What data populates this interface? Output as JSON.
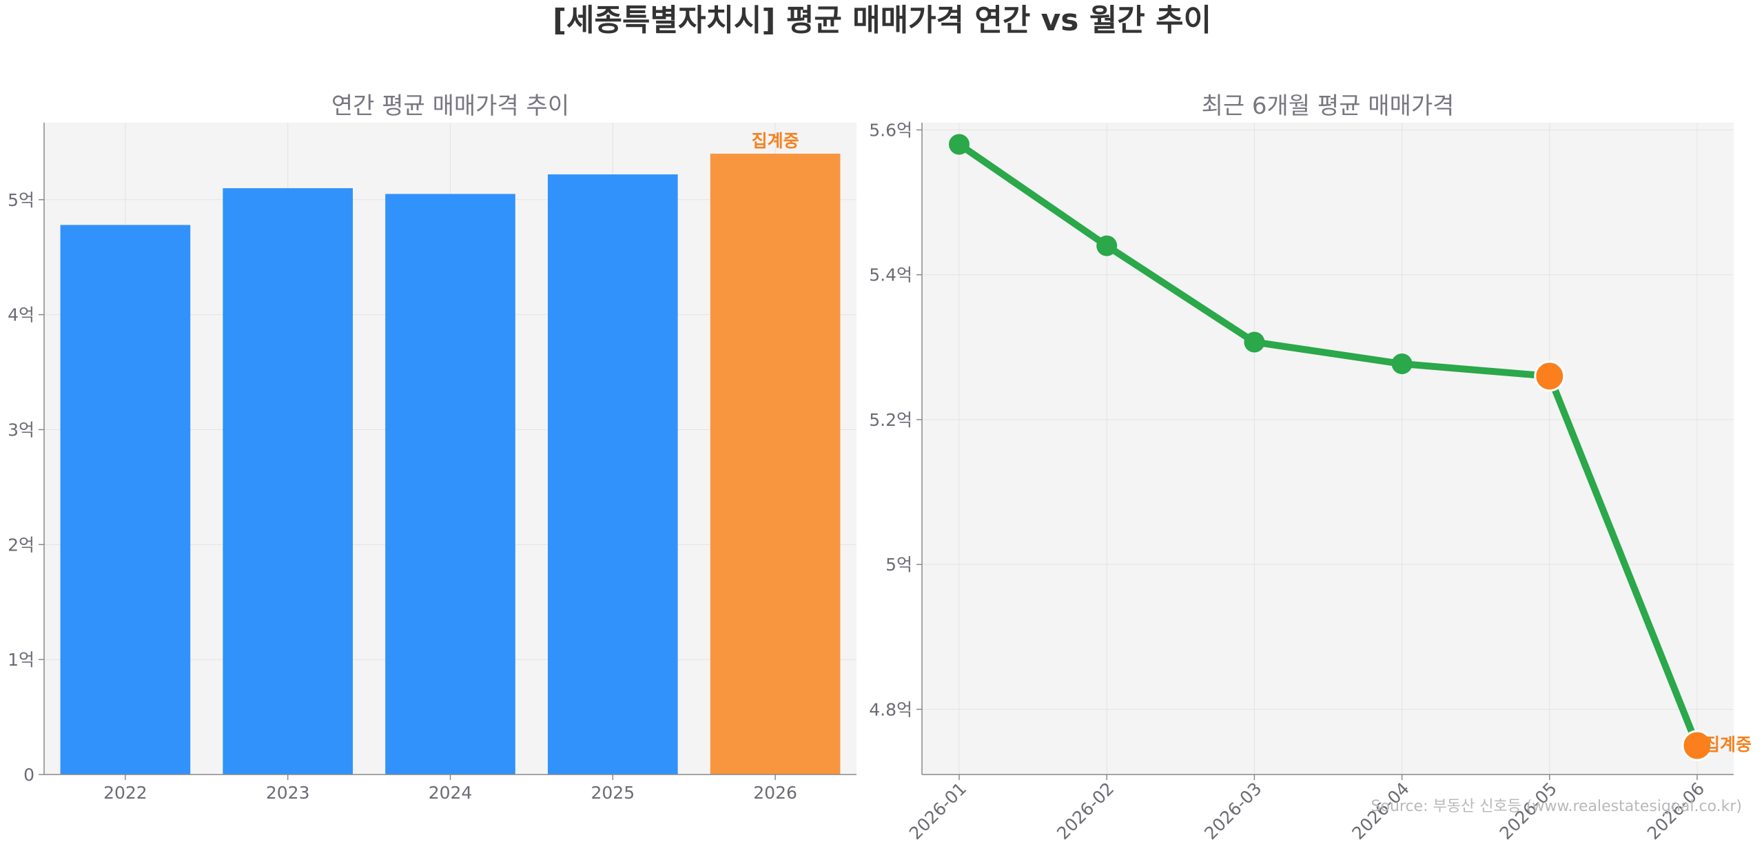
{
  "figure": {
    "suptitle": "[세종특별자치시] 평균 매매가격 연간 vs 월간 추이",
    "source": "Source: 부동산 신호등 (www.realestatesignal.co.kr)"
  },
  "colors": {
    "bar": "#3192fb",
    "bar_partial": "#f8963f",
    "line": "#2aa84a",
    "partial_marker": "#fb7f1c",
    "partial_label": "#f5821f",
    "panel_bg": "#f4f4f4",
    "title": "#77777f",
    "tick": "#6b6b73"
  },
  "chart_data": [
    {
      "type": "bar",
      "title": "연간 평균 매매가격 추이",
      "xlabel": "",
      "ylabel": "",
      "categories": [
        "2022",
        "2023",
        "2024",
        "2025",
        "2026"
      ],
      "values": [
        4.78,
        5.1,
        5.05,
        5.22,
        5.4
      ],
      "unit": "억",
      "partial_index": 4,
      "partial_label": "집계중",
      "ylim": [
        0,
        5.67
      ],
      "yticks": [
        0,
        1,
        2,
        3,
        4,
        5
      ],
      "ytick_labels": [
        "0",
        "1억",
        "2억",
        "3억",
        "4억",
        "5억"
      ],
      "grid": true
    },
    {
      "type": "line",
      "title": "최근 6개월 평균 매매가격",
      "xlabel": "",
      "ylabel": "",
      "categories": [
        "2026-01",
        "2026-02",
        "2026-03",
        "2026-04",
        "2026-05",
        "2026-06"
      ],
      "values": [
        5.58,
        5.44,
        5.307,
        5.277,
        5.26,
        4.75
      ],
      "unit": "억",
      "partial_indices": [
        4,
        5
      ],
      "partial_label": "집계중",
      "ylim": [
        4.71,
        5.61
      ],
      "yticks": [
        4.8,
        5.0,
        5.2,
        5.4,
        5.6
      ],
      "ytick_labels": [
        "4.8억",
        "5억",
        "5.2억",
        "5.4억",
        "5.6억"
      ],
      "grid": true
    }
  ]
}
